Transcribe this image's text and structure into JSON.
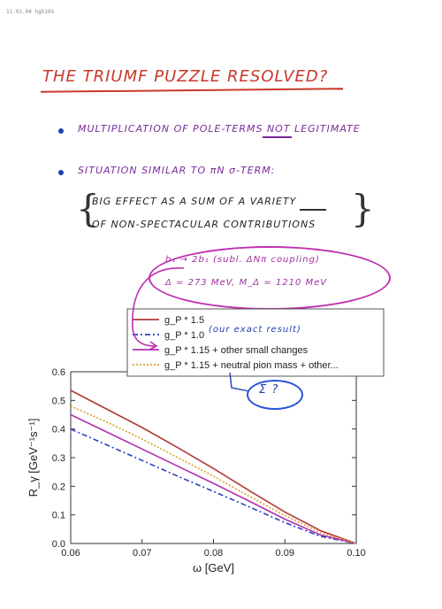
{
  "stamp": "11.02.04 hgb16%",
  "title": "THE TRIUMF PUZZLE RESOLVED?",
  "bullets": [
    {
      "pre": "MULTIPLICATION OF POLE-TERMS ",
      "emph": "NOT",
      "post": " LEGITIMATE"
    },
    {
      "text": "SITUATION SIMILAR TO πN σ-TERM:"
    }
  ],
  "effect": {
    "line1": "BIG EFFECT AS A SUM OF A VARIETY",
    "line2": "OF NON-SPECTACULAR CONTRIBUTIONS"
  },
  "note": {
    "line1": "b₁ → 2b₁   (subl. ΔNπ coupling)",
    "line2": "Δ = 273 MeV,   M_Δ = 1210 MeV"
  },
  "annotations": {
    "our_result": "(our exact result)",
    "circled": "Σ ?"
  },
  "colors": {
    "red": "#c8392b",
    "blue": "#1f3fb0",
    "purple": "#7a2a9a",
    "magenta": "#c030b0"
  },
  "chart_data": {
    "type": "line",
    "xlabel": "ω [GeV]",
    "ylabel": "R_γ [GeV⁻¹s⁻¹]",
    "xlim": [
      0.06,
      0.1
    ],
    "ylim": [
      0.0,
      0.6
    ],
    "xticks": [
      "0.06",
      "0.07",
      "0.08",
      "0.09",
      "0.10"
    ],
    "yticks": [
      "0.0",
      "0.1",
      "0.2",
      "0.3",
      "0.4",
      "0.5",
      "0.6"
    ],
    "legend_position": "top",
    "series": [
      {
        "name": "g_P * 1.5",
        "color": "#b03a3a",
        "dash": "",
        "points": [
          [
            0.06,
            0.535
          ],
          [
            0.065,
            0.47
          ],
          [
            0.07,
            0.405
          ],
          [
            0.075,
            0.335
          ],
          [
            0.08,
            0.262
          ],
          [
            0.085,
            0.185
          ],
          [
            0.09,
            0.11
          ],
          [
            0.095,
            0.045
          ],
          [
            0.1,
            0.0
          ]
        ]
      },
      {
        "name": "g_P * 1.0",
        "color": "#2a3fc0",
        "dash": "6,3,2,3",
        "points": [
          [
            0.06,
            0.4
          ],
          [
            0.065,
            0.345
          ],
          [
            0.07,
            0.29
          ],
          [
            0.075,
            0.235
          ],
          [
            0.08,
            0.182
          ],
          [
            0.085,
            0.128
          ],
          [
            0.09,
            0.073
          ],
          [
            0.095,
            0.025
          ],
          [
            0.1,
            0.0
          ]
        ]
      },
      {
        "name": "g_P * 1.15 + other small changes",
        "color": "#b030b0",
        "dash": "",
        "points": [
          [
            0.06,
            0.45
          ],
          [
            0.065,
            0.39
          ],
          [
            0.07,
            0.33
          ],
          [
            0.075,
            0.27
          ],
          [
            0.08,
            0.21
          ],
          [
            0.085,
            0.148
          ],
          [
            0.09,
            0.085
          ],
          [
            0.095,
            0.03
          ],
          [
            0.1,
            0.0
          ]
        ]
      },
      {
        "name": "g_P * 1.15 + neutral pion mass + other...",
        "color": "#d9a030",
        "dash": "2,2",
        "points": [
          [
            0.06,
            0.48
          ],
          [
            0.065,
            0.425
          ],
          [
            0.07,
            0.365
          ],
          [
            0.075,
            0.3
          ],
          [
            0.08,
            0.235
          ],
          [
            0.085,
            0.165
          ],
          [
            0.09,
            0.098
          ],
          [
            0.095,
            0.038
          ],
          [
            0.1,
            0.0
          ]
        ]
      }
    ]
  }
}
